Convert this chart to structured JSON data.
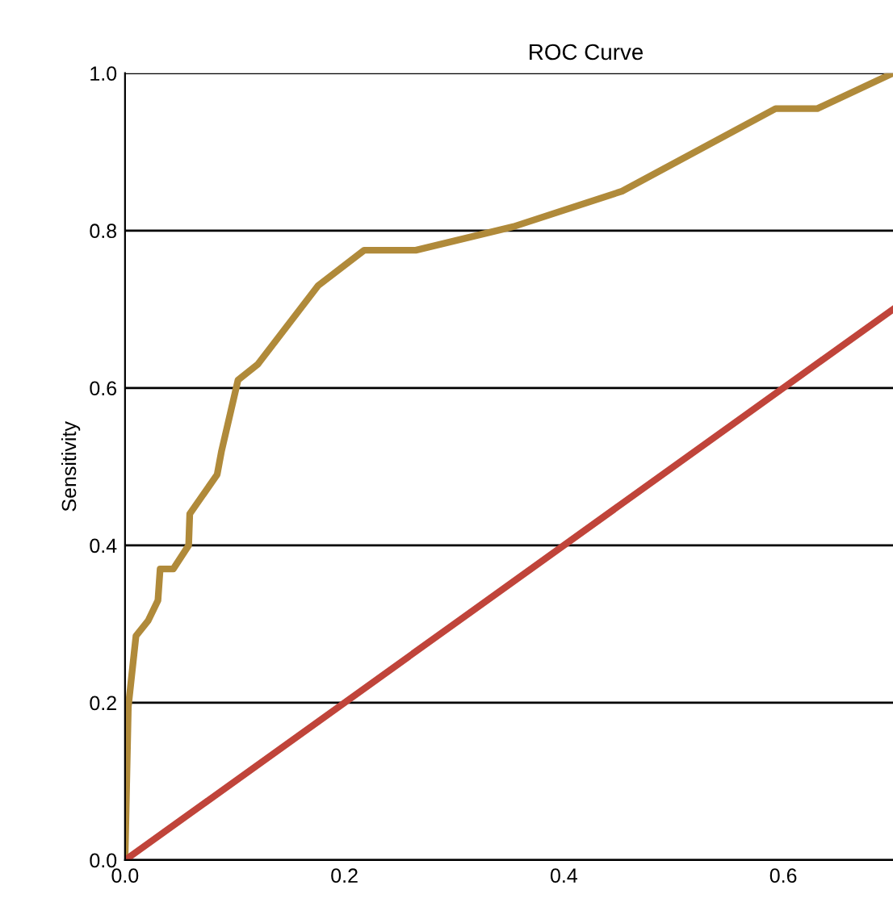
{
  "chart_data": {
    "type": "line",
    "title": "ROC Curve",
    "ylabel": "Sensitivity",
    "xlim": [
      0,
      0.7
    ],
    "ylim": [
      0,
      1.0
    ],
    "xticks": [
      {
        "value": 0.0,
        "label": "0.0"
      },
      {
        "value": 0.2,
        "label": "0.2"
      },
      {
        "value": 0.4,
        "label": "0.4"
      },
      {
        "value": 0.6,
        "label": "0.6"
      }
    ],
    "yticks": [
      {
        "value": 0.0,
        "label": "0.0"
      },
      {
        "value": 0.2,
        "label": "0.2"
      },
      {
        "value": 0.4,
        "label": "0.4"
      },
      {
        "value": 0.6,
        "label": "0.6"
      },
      {
        "value": 0.8,
        "label": "0.8"
      },
      {
        "value": 1.0,
        "label": "1.0"
      }
    ],
    "grid": "y",
    "legend": false,
    "marker": "none",
    "line_style": "solid",
    "series": [
      {
        "color": "#b08a3a",
        "x": [
          0,
          0.003,
          0.01,
          0.021,
          0.03,
          0.032,
          0.044,
          0.058,
          0.059,
          0.084,
          0.088,
          0.103,
          0.121,
          0.143,
          0.176,
          0.218,
          0.265,
          0.354,
          0.453,
          0.593,
          0.631,
          0.7
        ],
        "values": [
          0,
          0.195,
          0.285,
          0.304,
          0.33,
          0.37,
          0.37,
          0.4,
          0.44,
          0.49,
          0.52,
          0.61,
          0.63,
          0.67,
          0.73,
          0.775,
          0.775,
          0.805,
          0.85,
          0.955,
          0.955,
          1.0
        ]
      },
      {
        "color": "#c0443a",
        "x": [
          0,
          0.7
        ],
        "values": [
          0,
          0.7
        ]
      }
    ]
  }
}
